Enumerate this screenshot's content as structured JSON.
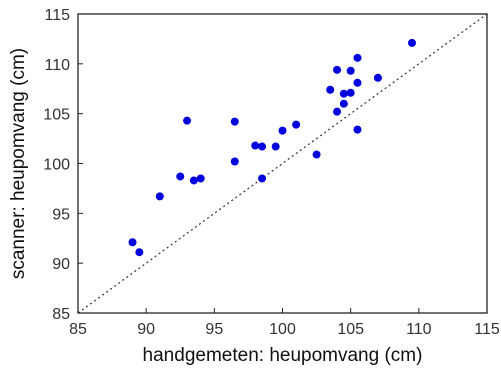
{
  "chart_data": {
    "type": "scatter",
    "xlabel": "handgemeten: heupomvang (cm)",
    "ylabel": "scanner: heupomvang (cm)",
    "xlim": [
      85,
      115
    ],
    "ylim": [
      85,
      115
    ],
    "xticks": [
      "85",
      "90",
      "95",
      "100",
      "105",
      "110",
      "115"
    ],
    "yticks": [
      "85",
      "90",
      "95",
      "100",
      "105",
      "110",
      "115"
    ],
    "grid": false,
    "reference_line": {
      "style": "dotted",
      "from": [
        85,
        85
      ],
      "to": [
        115,
        115
      ]
    },
    "series": [
      {
        "color": "#0000dd",
        "points": [
          [
            89.0,
            92.1
          ],
          [
            89.5,
            91.1
          ],
          [
            91.0,
            96.7
          ],
          [
            92.5,
            98.7
          ],
          [
            93.0,
            104.3
          ],
          [
            93.5,
            98.3
          ],
          [
            94.0,
            98.5
          ],
          [
            96.5,
            104.2
          ],
          [
            96.5,
            100.2
          ],
          [
            98.0,
            101.8
          ],
          [
            98.5,
            101.7
          ],
          [
            98.5,
            98.5
          ],
          [
            99.5,
            101.7
          ],
          [
            100.0,
            103.3
          ],
          [
            101.0,
            103.9
          ],
          [
            102.5,
            100.9
          ],
          [
            103.5,
            107.4
          ],
          [
            104.0,
            109.4
          ],
          [
            104.0,
            105.2
          ],
          [
            104.5,
            107.0
          ],
          [
            104.5,
            106.0
          ],
          [
            105.0,
            109.3
          ],
          [
            105.0,
            107.1
          ],
          [
            105.5,
            110.6
          ],
          [
            105.5,
            108.1
          ],
          [
            105.5,
            103.4
          ],
          [
            107.0,
            108.6
          ],
          [
            109.5,
            112.1
          ]
        ]
      }
    ]
  }
}
